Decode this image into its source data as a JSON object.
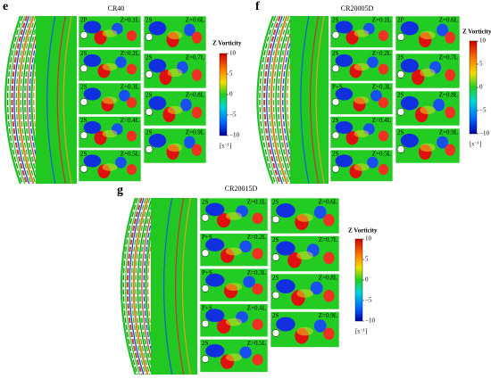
{
  "figures": [
    {
      "label": "e",
      "title": "CR40",
      "panels": [
        {
          "mode": "2P",
          "position": "Z=0.1L"
        },
        {
          "mode": "2S",
          "position": "Z=0.2L"
        },
        {
          "mode": "2S",
          "position": "Z=0.3L"
        },
        {
          "mode": "2S",
          "position": "Z=0.4L"
        },
        {
          "mode": "2S",
          "position": "Z=0.5L"
        },
        {
          "mode": "2S",
          "position": "Z=0.6L"
        },
        {
          "mode": "2S",
          "position": "Z=0.7L"
        },
        {
          "mode": "2S",
          "position": "Z=0.8L"
        },
        {
          "mode": "2S",
          "position": "Z=0.9L"
        }
      ],
      "colorbar": {
        "title": "Z Vorticity",
        "ticks": [
          "10",
          "5",
          "0",
          "−5",
          "−10"
        ],
        "unit": "[s⁻¹]"
      }
    },
    {
      "label": "f",
      "title": "CR20005D",
      "panels": [
        {
          "mode": "2S",
          "position": "Z=0.1L"
        },
        {
          "mode": "2S",
          "position": "Z=0.2L"
        },
        {
          "mode": "P+S",
          "position": "Z=0.3L"
        },
        {
          "mode": "2S",
          "position": "Z=0.4L"
        },
        {
          "mode": "2S",
          "position": "Z=0.5L"
        },
        {
          "mode": "2P",
          "position": "Z=0.6L"
        },
        {
          "mode": "2S",
          "position": "Z=0.7L"
        },
        {
          "mode": "2S",
          "position": "Z=0.8L"
        },
        {
          "mode": "2S",
          "position": "Z=0.9L"
        }
      ],
      "colorbar": {
        "title": "Z Vorticity",
        "ticks": [
          "10",
          "5",
          "0",
          "−5",
          "−10"
        ],
        "unit": "[s⁻¹]"
      }
    },
    {
      "label": "g",
      "title": "CR20015D",
      "panels": [
        {
          "mode": "2S",
          "position": "Z=0.1L"
        },
        {
          "mode": "P+S",
          "position": "Z=0.2L"
        },
        {
          "mode": "P+S",
          "position": "Z=0.3L"
        },
        {
          "mode": "P+S",
          "position": "Z=0.4L"
        },
        {
          "mode": "2S",
          "position": "Z=0.5L"
        },
        {
          "mode": "2S",
          "position": "Z=0.6L"
        },
        {
          "mode": "2S",
          "position": "Z=0.7L"
        },
        {
          "mode": "2S",
          "position": "Z=0.8L"
        },
        {
          "mode": "2S",
          "position": "Z=0.9L"
        }
      ],
      "colorbar": {
        "title": "Z Vorticity",
        "ticks": [
          "10",
          "5",
          "0",
          "−5",
          "−10"
        ],
        "unit": "[s⁻¹]"
      }
    }
  ]
}
